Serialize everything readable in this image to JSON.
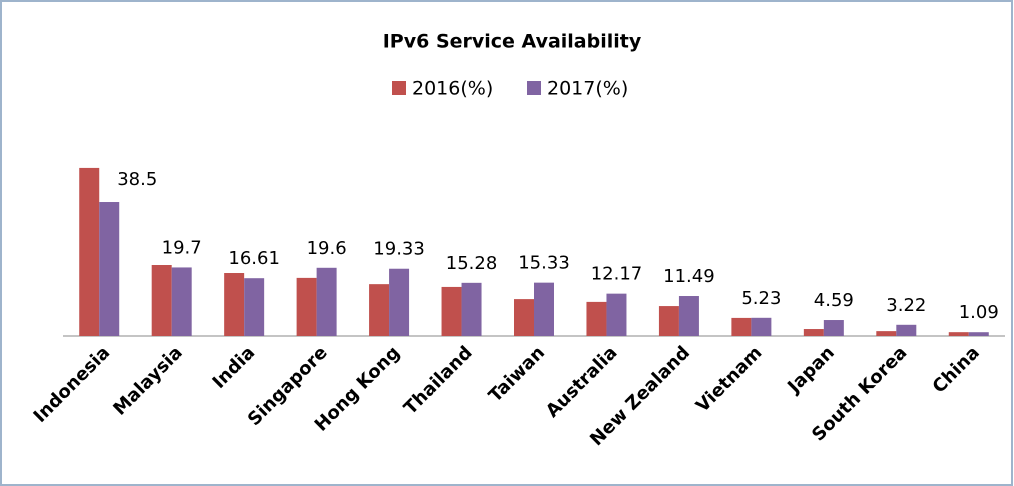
{
  "chart_data": {
    "type": "bar",
    "title": "IPv6 Service Availability",
    "categories": [
      "Indonesia",
      "Malaysia",
      "India",
      "Singapore",
      "Hong Kong",
      "Thailand",
      "Taiwan",
      "Australia",
      "New Zealand",
      "Vietnam",
      "Japan",
      "South Korea",
      "China"
    ],
    "series": [
      {
        "name": "2016(%)",
        "color": "#c0504d",
        "values": [
          48.3,
          20.4,
          18.1,
          16.7,
          14.9,
          14.1,
          10.6,
          9.8,
          8.6,
          5.2,
          2.0,
          1.4,
          1.1
        ]
      },
      {
        "name": "2017(%)",
        "color": "#8064a2",
        "values": [
          38.5,
          19.7,
          16.61,
          19.6,
          19.33,
          15.28,
          15.33,
          12.17,
          11.49,
          5.23,
          4.59,
          3.22,
          1.09
        ]
      }
    ],
    "data_labels_series": 1,
    "legend": "top"
  }
}
